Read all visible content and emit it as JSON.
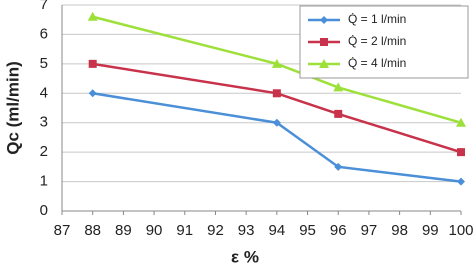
{
  "chart_data": {
    "type": "line",
    "x_label": "ε %",
    "y_label": "Qc (ml/min)",
    "x": [
      88,
      94,
      96,
      100
    ],
    "series": [
      {
        "name": "Q̇ = 1 l/min",
        "color": "#4a8fd8",
        "marker": "diamond",
        "values": [
          4,
          3,
          1.5,
          1
        ]
      },
      {
        "name": "Q̇ = 2 l/min",
        "color": "#c8324a",
        "marker": "square",
        "values": [
          5,
          4,
          3.3,
          2
        ]
      },
      {
        "name": "Q̇ = 4 l/min",
        "color": "#9ee03a",
        "marker": "triangle",
        "values": [
          6.6,
          5,
          4.2,
          3
        ]
      }
    ],
    "xlim": [
      87,
      100
    ],
    "xticks": [
      87,
      88,
      89,
      90,
      91,
      92,
      93,
      94,
      95,
      96,
      97,
      98,
      99,
      100
    ],
    "ylim": [
      0,
      7
    ],
    "yticks": [
      0,
      1,
      2,
      3,
      4,
      5,
      6,
      7
    ],
    "grid": true,
    "legend": "upper right"
  }
}
